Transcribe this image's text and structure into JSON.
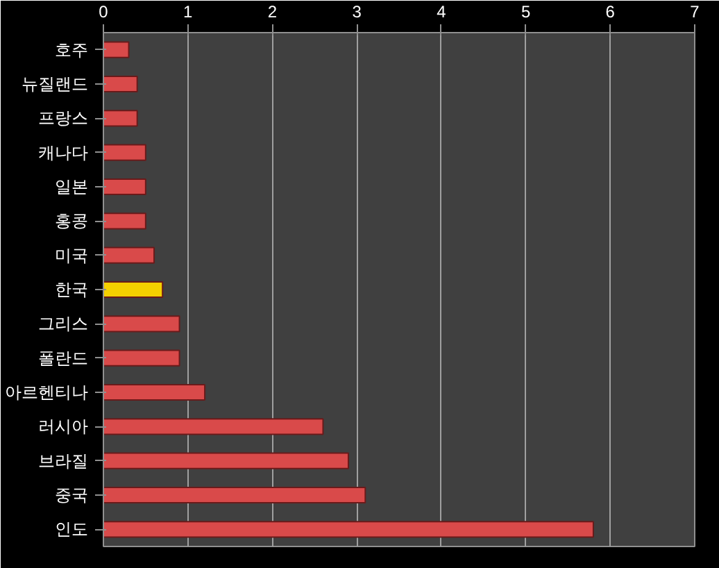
{
  "chart_data": {
    "type": "bar",
    "orientation": "horizontal",
    "categories": [
      "호주",
      "뉴질랜드",
      "프랑스",
      "캐나다",
      "일본",
      "홍콩",
      "미국",
      "한국",
      "그리스",
      "폴란드",
      "아르헨티나",
      "러시아",
      "브라질",
      "중국",
      "인도"
    ],
    "values": [
      0.3,
      0.4,
      0.4,
      0.5,
      0.5,
      0.5,
      0.6,
      0.7,
      0.9,
      0.9,
      1.2,
      2.6,
      2.9,
      3.1,
      5.8
    ],
    "colors": [
      "#d94a4a",
      "#d94a4a",
      "#d94a4a",
      "#d94a4a",
      "#d94a4a",
      "#d94a4a",
      "#d94a4a",
      "#f5d000",
      "#d94a4a",
      "#d94a4a",
      "#d94a4a",
      "#d94a4a",
      "#d94a4a",
      "#d94a4a",
      "#d94a4a"
    ],
    "xlim": [
      0,
      7
    ],
    "xticks": [
      0,
      1,
      2,
      3,
      4,
      5,
      6,
      7
    ],
    "grid": "x"
  }
}
